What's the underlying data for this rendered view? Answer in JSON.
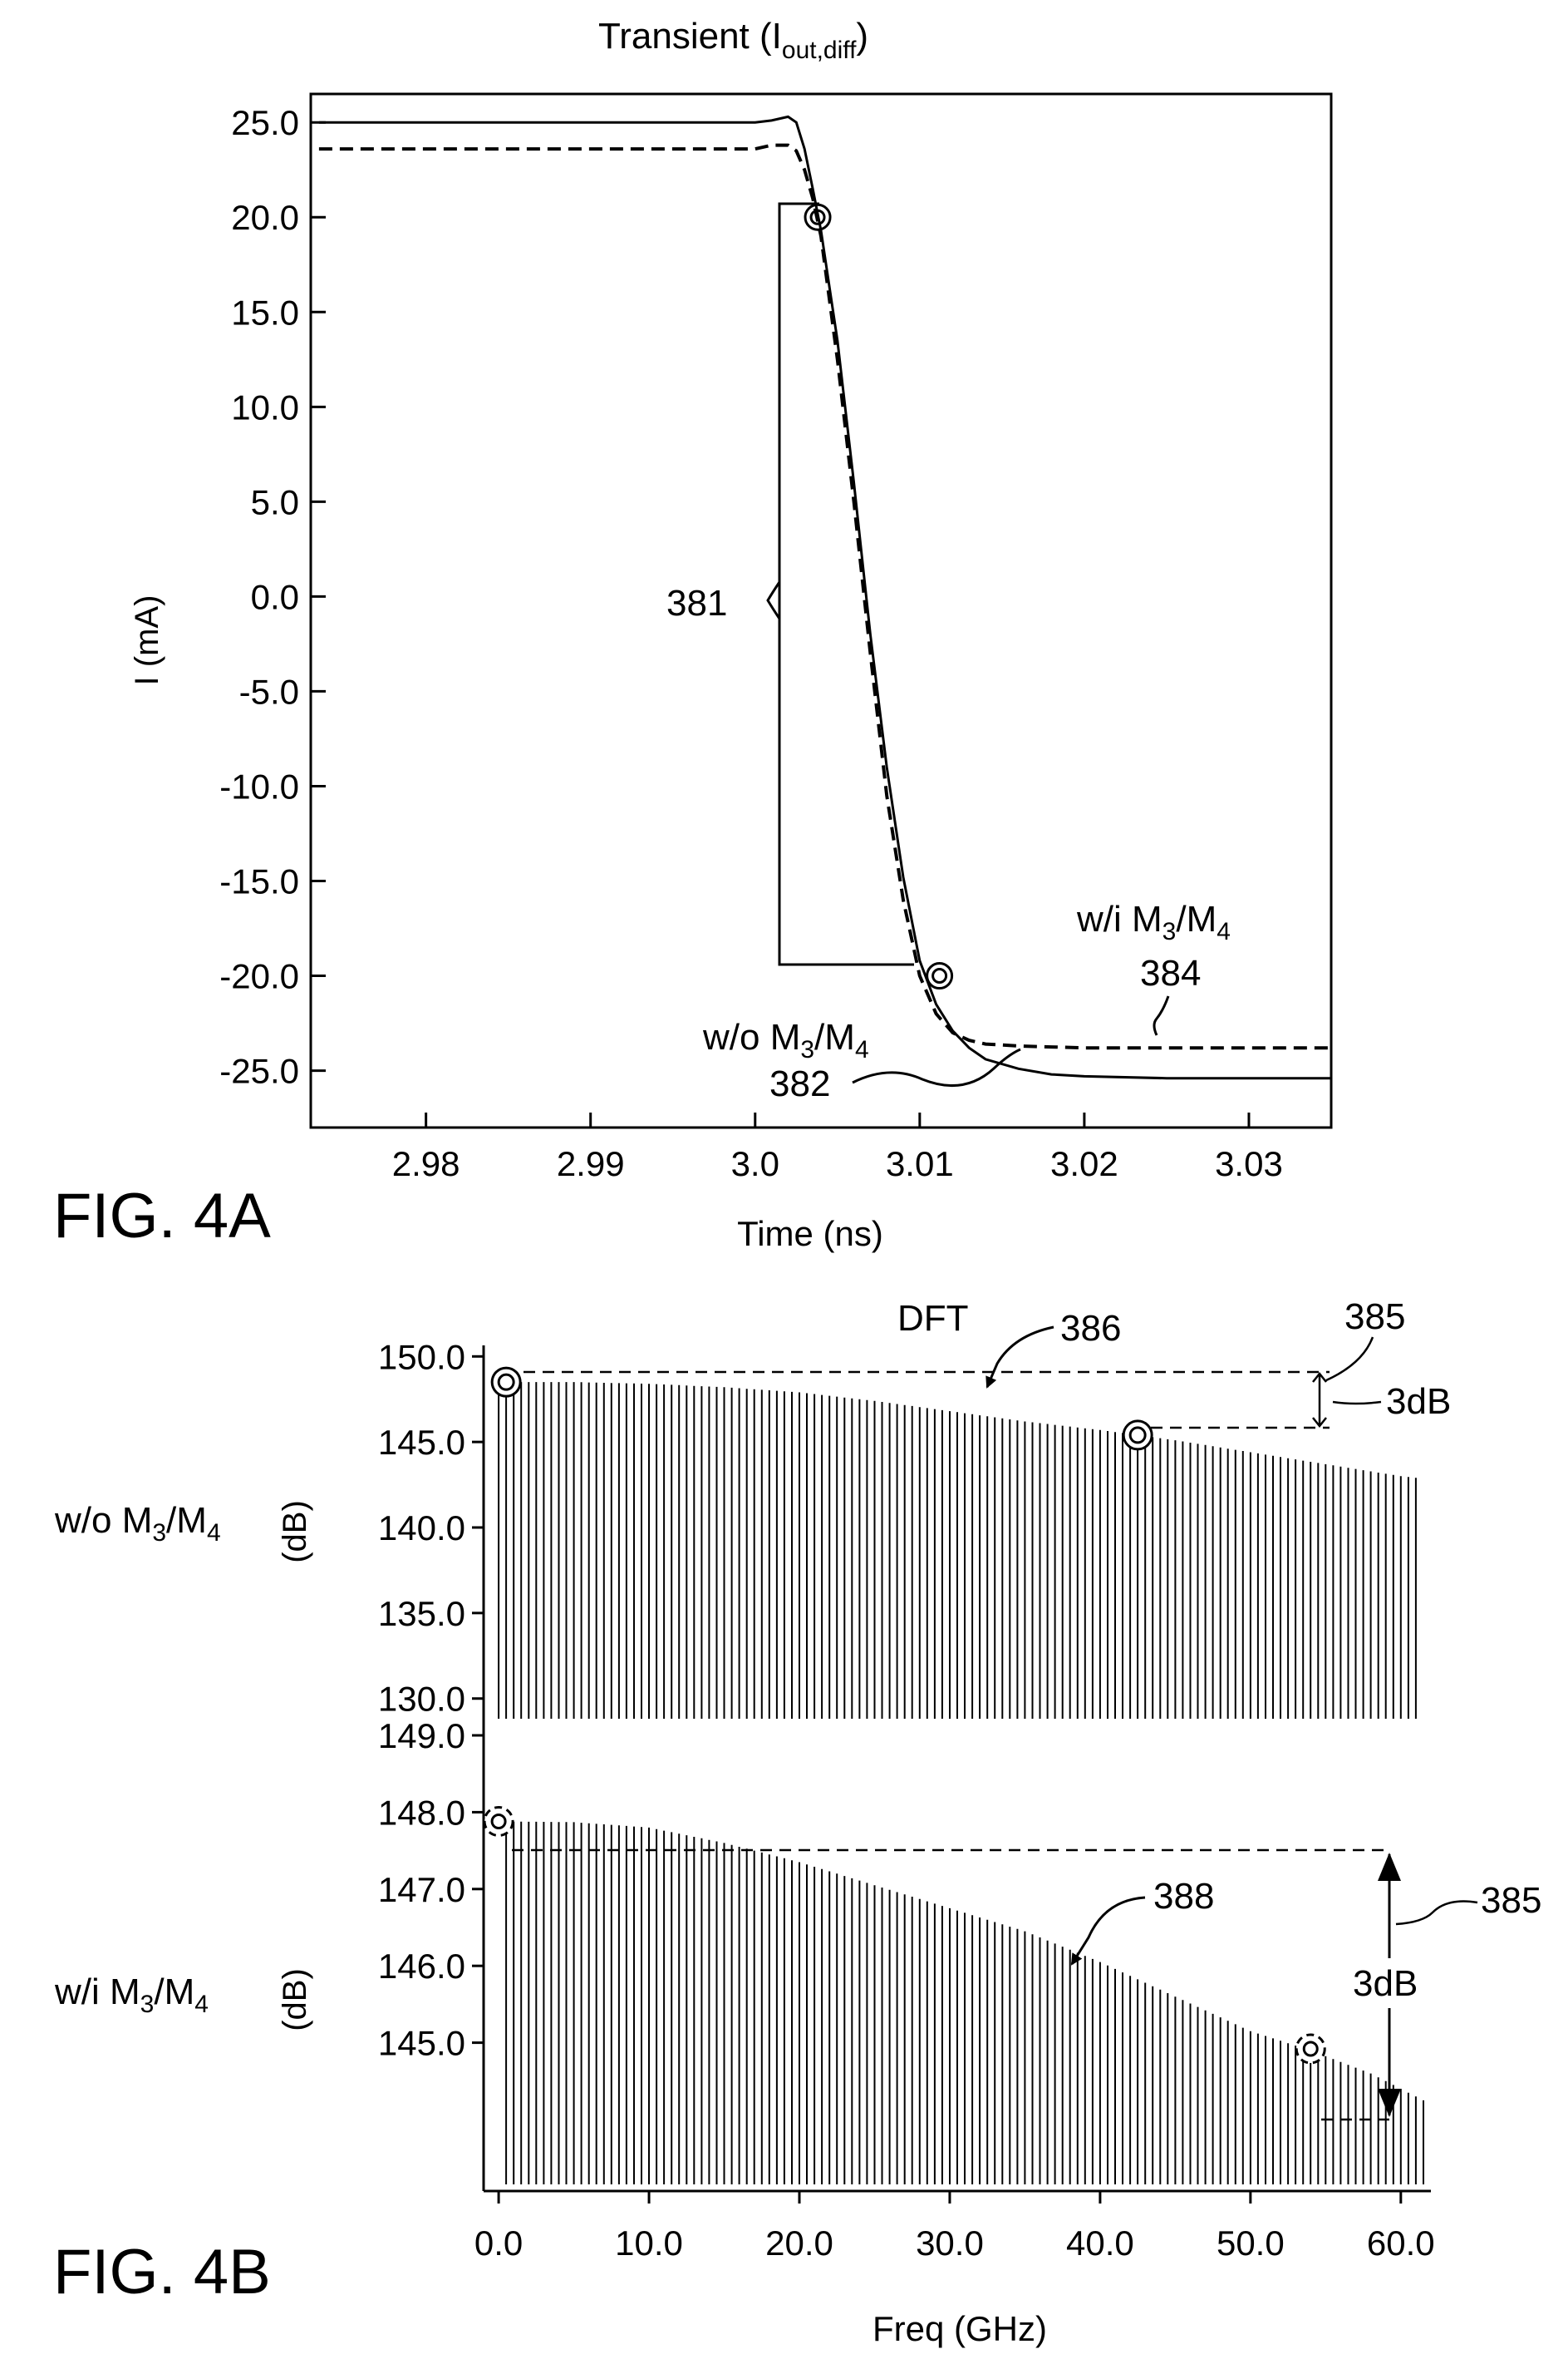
{
  "figure_4a": {
    "fig_label": "FIG. 4A",
    "title_main": "Transient (I",
    "title_sub": "out,diff",
    "title_close": ")",
    "ylabel": "I (mA)",
    "xlabel": "Time (ns)",
    "ref_381": "381",
    "label_wo_prefix": "w/o M",
    "label_wo_mid": "/M",
    "label_wi_prefix": "w/i M",
    "label_wi_mid": "/M",
    "sub_3": "3",
    "sub_4": "4",
    "ref_382": "382",
    "ref_384": "384"
  },
  "figure_4b": {
    "fig_label": "FIG. 4B",
    "title": "DFT",
    "xlabel": "Freq (GHz)",
    "ylabel_top": "(dB)",
    "ylabel_bottom": "(dB)",
    "row_wo_prefix": "w/o M",
    "row_wi_prefix": "w/i M",
    "row_mid": "/M",
    "sub_3": "3",
    "sub_4": "4",
    "ref_385_top": "385",
    "ref_385_bottom": "385",
    "ref_386": "386",
    "ref_388": "388",
    "db_top": "3dB",
    "db_bottom": "3dB"
  },
  "chart_data": [
    {
      "type": "line",
      "title": "Transient (I out,diff)",
      "xlabel": "Time (ns)",
      "ylabel": "I (mA)",
      "xlim": [
        2.973,
        3.035
      ],
      "ylim": [
        -28.0,
        26.5
      ],
      "x_ticks": [
        "2.98",
        "2.99",
        "3.0",
        "3.01",
        "3.02",
        "3.03"
      ],
      "x_tick_values": [
        2.98,
        2.99,
        3.0,
        3.01,
        3.02,
        3.03
      ],
      "y_ticks": [
        "25.0",
        "20.0",
        "15.0",
        "10.0",
        "5.0",
        "0.0",
        "-5.0",
        "-10.0",
        "-15.0",
        "-20.0",
        "-25.0"
      ],
      "y_tick_values": [
        25,
        20,
        15,
        10,
        5,
        0,
        -5,
        -10,
        -15,
        -20,
        -25
      ],
      "series": [
        {
          "name": "w/o M3/M4",
          "style": "solid",
          "x": [
            2.9735,
            3.0,
            3.001,
            3.002,
            3.0025,
            3.003,
            3.0035,
            3.004,
            3.005,
            3.006,
            3.007,
            3.008,
            3.009,
            3.01,
            3.011,
            3.012,
            3.013,
            3.014,
            3.016,
            3.018,
            3.02,
            3.025,
            3.035
          ],
          "y": [
            25.0,
            25.0,
            25.1,
            25.3,
            25.0,
            23.6,
            21.5,
            19.3,
            13.5,
            6.0,
            -2.0,
            -9.0,
            -14.8,
            -19.2,
            -21.5,
            -22.9,
            -23.8,
            -24.4,
            -24.9,
            -25.2,
            -25.3,
            -25.4,
            -25.4
          ]
        },
        {
          "name": "w/i M3/M4",
          "style": "dashed",
          "x": [
            2.9735,
            3.0,
            3.001,
            3.002,
            3.0025,
            3.003,
            3.0035,
            3.004,
            3.005,
            3.006,
            3.007,
            3.008,
            3.009,
            3.01,
            3.011,
            3.012,
            3.013,
            3.014,
            3.016,
            3.018,
            3.02,
            3.025,
            3.035
          ],
          "y": [
            23.6,
            23.6,
            23.8,
            23.8,
            23.5,
            22.5,
            21.0,
            19.0,
            12.5,
            5.0,
            -3.0,
            -10.5,
            -16.0,
            -20.0,
            -22.0,
            -23.0,
            -23.4,
            -23.6,
            -23.7,
            -23.75,
            -23.8,
            -23.8,
            -23.8
          ]
        }
      ],
      "markers": [
        {
          "x": 3.0038,
          "y": 20.0
        },
        {
          "x": 3.0112,
          "y": -20.0
        }
      ],
      "grid": true
    },
    {
      "type": "bar",
      "title": "DFT",
      "xlabel": "Freq (GHz)",
      "ylabel": "(dB)",
      "row_label": "w/o M3/M4",
      "xlim": [
        -1.0,
        62.0
      ],
      "ylim": [
        129.5,
        150.5
      ],
      "y_ticks": [
        "150.0",
        "145.0",
        "140.0",
        "135.0",
        "130.0"
      ],
      "y_tick_values": [
        150,
        145,
        140,
        135,
        130
      ],
      "bar_spacing_ghz": 0.5,
      "x_range_ghz": [
        0.0,
        61.0
      ],
      "envelope_x": [
        0,
        5,
        10,
        15,
        20,
        25,
        30,
        35,
        40,
        42.5,
        45,
        50,
        55,
        60,
        61
      ],
      "envelope_y": [
        148.5,
        148.5,
        148.4,
        148.2,
        147.9,
        147.4,
        146.8,
        146.2,
        145.7,
        145.4,
        145.1,
        144.4,
        143.7,
        143.0,
        142.9
      ],
      "markers": [
        {
          "x": 0.5,
          "y": 148.5
        },
        {
          "x": 42.5,
          "y": 145.4
        }
      ],
      "annotation": "3dB"
    },
    {
      "type": "bar",
      "xlabel": "Freq (GHz)",
      "ylabel": "(dB)",
      "row_label": "w/i M3/M4",
      "xlim": [
        -1.0,
        62.0
      ],
      "ylim": [
        144.0,
        149.0
      ],
      "x_ticks": [
        "0.0",
        "10.0",
        "20.0",
        "30.0",
        "40.0",
        "50.0",
        "60.0"
      ],
      "x_tick_values": [
        0,
        10,
        20,
        30,
        40,
        50,
        60
      ],
      "y_ticks": [
        "149.0",
        "148.0",
        "147.0",
        "146.0",
        "145.0"
      ],
      "y_tick_values": [
        149,
        148,
        147,
        146,
        145
      ],
      "bar_spacing_ghz": 0.5,
      "x_range_ghz": [
        0.5,
        61.5
      ],
      "envelope_x": [
        0,
        5,
        10,
        15,
        20,
        25,
        30,
        35,
        40,
        45,
        50,
        54,
        58,
        61.5
      ],
      "envelope_y": [
        147.88,
        147.87,
        147.8,
        147.6,
        147.35,
        147.05,
        146.75,
        146.45,
        146.05,
        145.6,
        145.15,
        144.9,
        144.6,
        144.25
      ],
      "markers": [
        {
          "x": 0.0,
          "y": 147.88
        },
        {
          "x": 54.0,
          "y": 144.92
        }
      ],
      "annotation": "3dB"
    }
  ]
}
